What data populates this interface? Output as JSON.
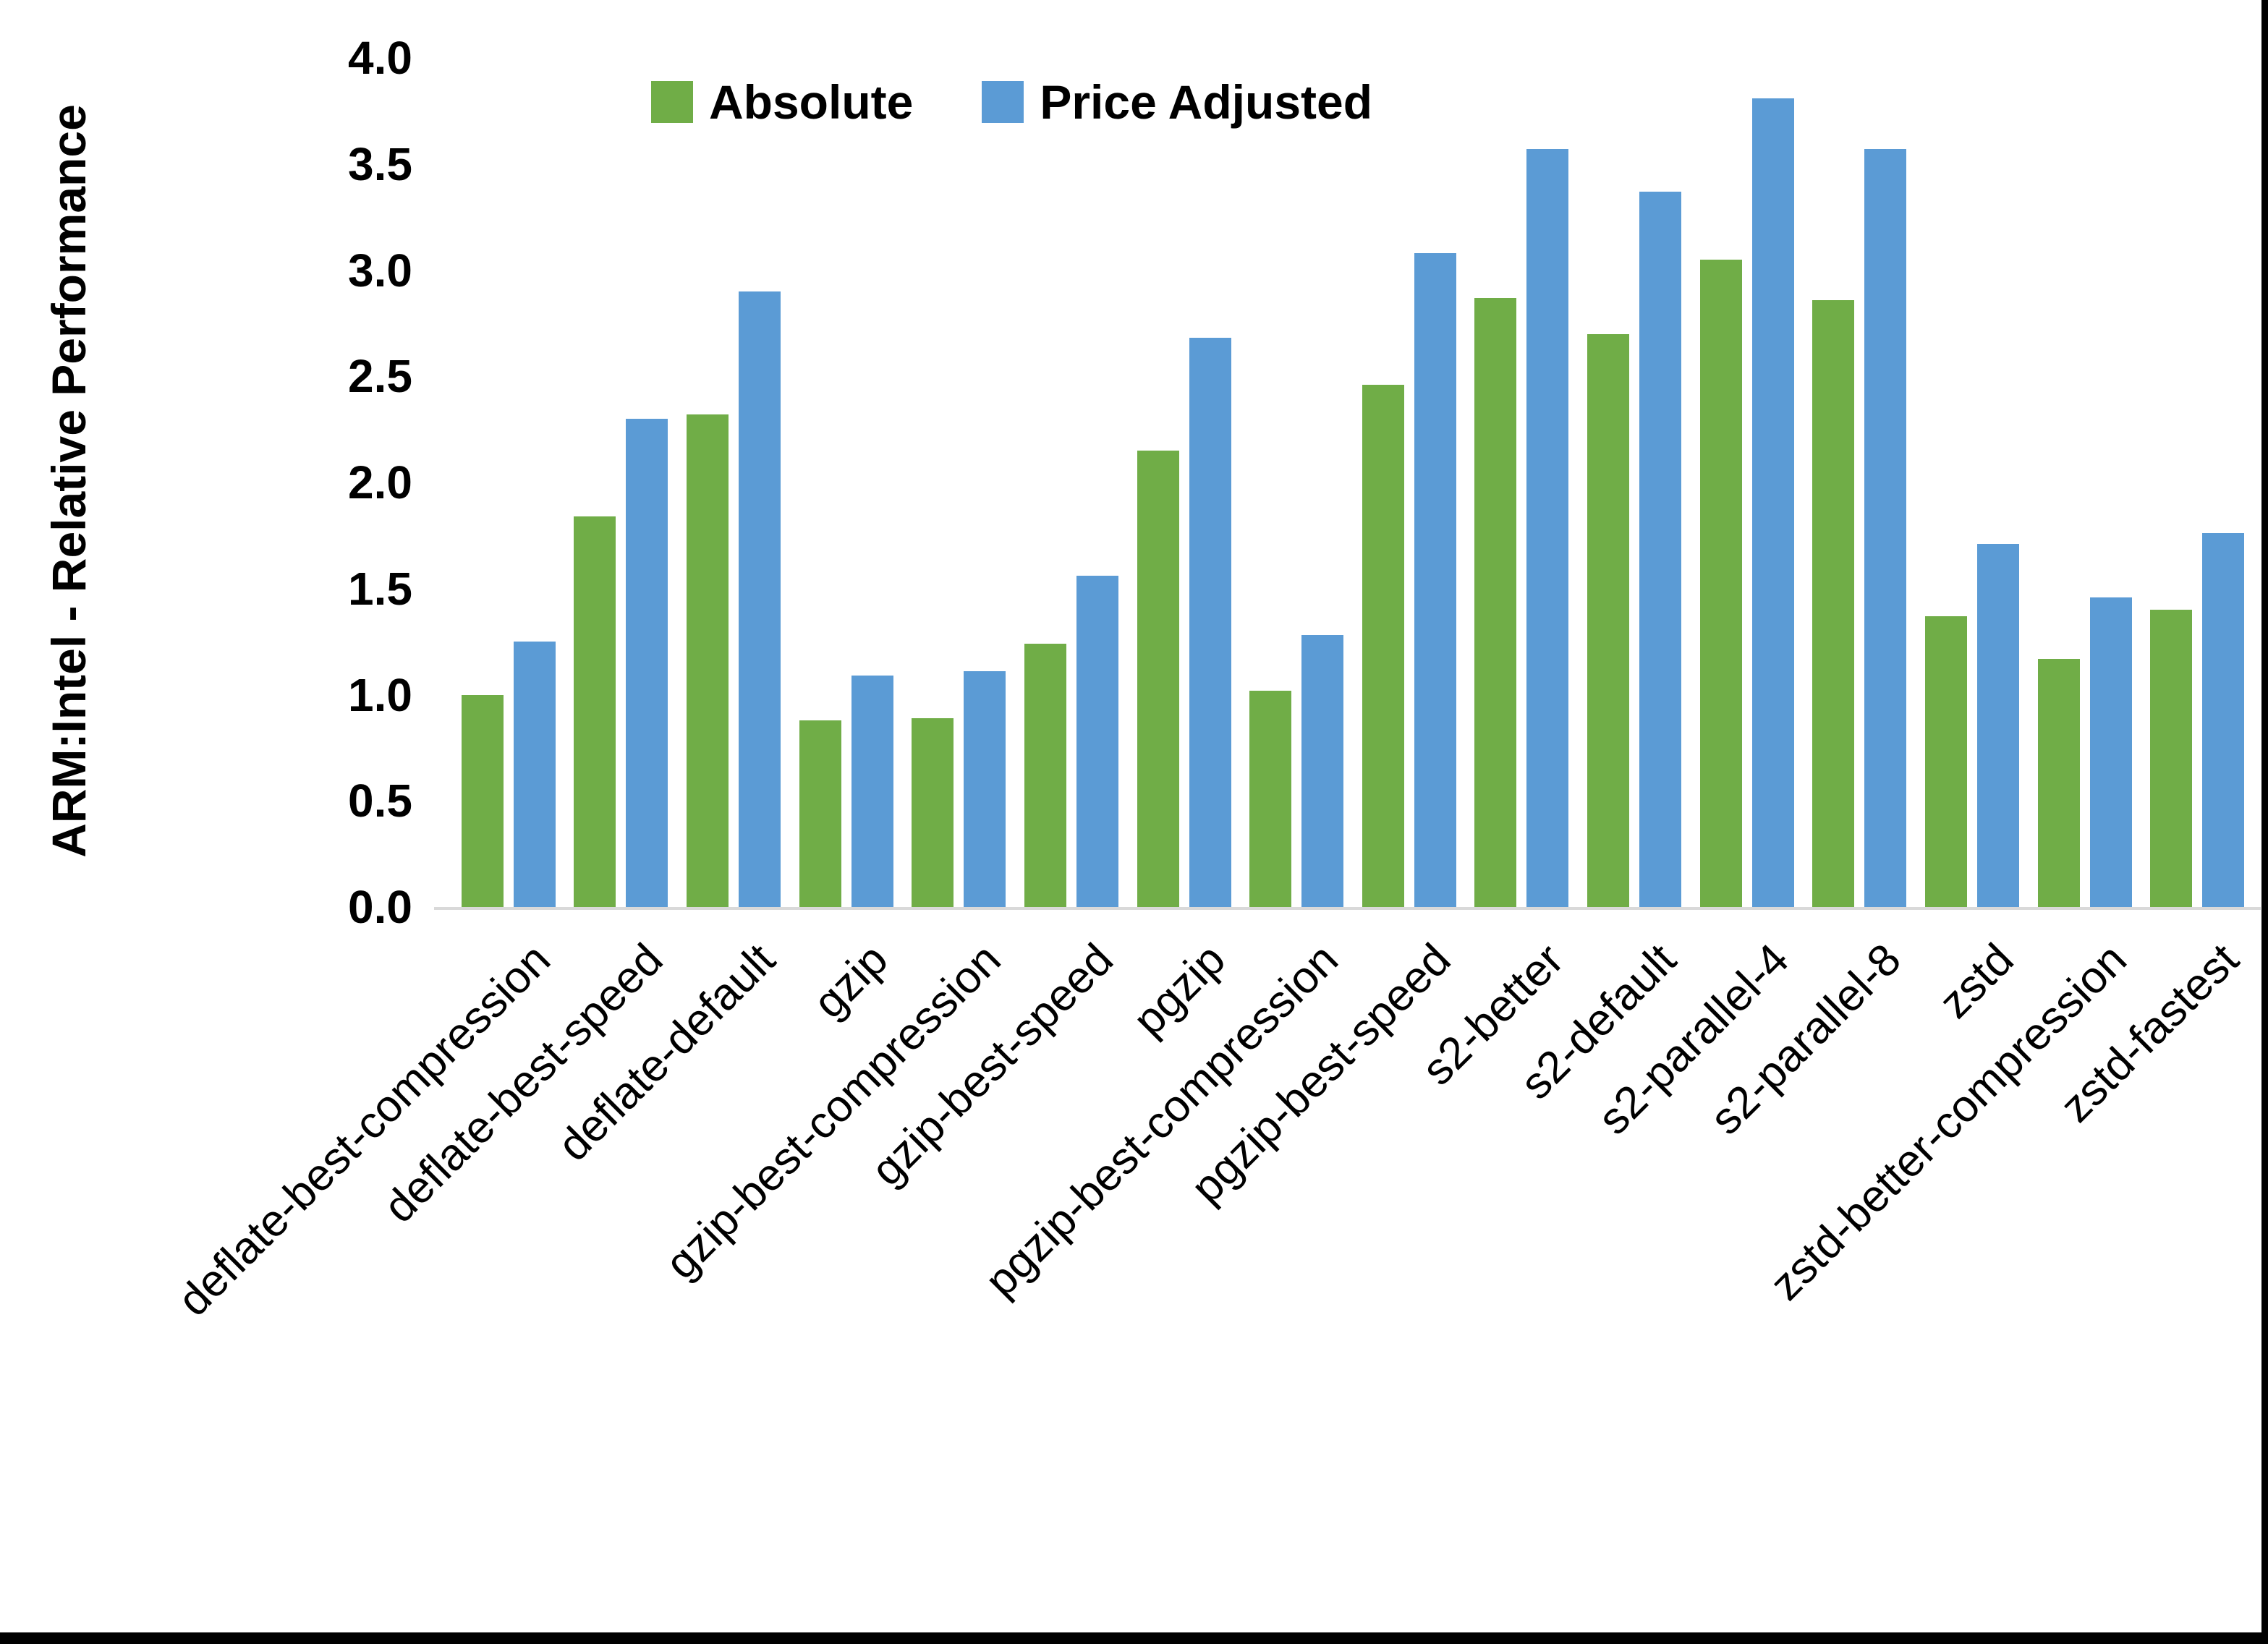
{
  "chart_data": {
    "type": "bar",
    "title": "",
    "xlabel": "",
    "ylabel": "ARM:Intel - Relative Performance",
    "ylim": [
      0,
      4
    ],
    "ytick_step": 0.5,
    "ytick_labels": [
      "0.0",
      "0.5",
      "1.0",
      "1.5",
      "2.0",
      "2.5",
      "3.0",
      "3.5",
      "4.0"
    ],
    "grid": false,
    "legend_position": "top-center",
    "categories": [
      "deflate-best-compression",
      "deflate-best-speed",
      "deflate-default",
      "gzip",
      "gzip-best-compression",
      "gzip-best-speed",
      "pgzip",
      "pgzip-best-compression",
      "pgzip-best-speed",
      "s2-better",
      "s2-default",
      "s2-parallel-4",
      "s2-parallel-8",
      "zstd",
      "zstd-better-compression",
      "zstd-fastest"
    ],
    "series": [
      {
        "name": "Absolute",
        "color": "#70AD47",
        "values": [
          1.0,
          1.84,
          2.32,
          0.88,
          0.89,
          1.24,
          2.15,
          1.02,
          2.46,
          2.87,
          2.7,
          3.05,
          2.86,
          1.37,
          1.17,
          1.4
        ]
      },
      {
        "name": "Price Adjusted",
        "color": "#5B9BD5",
        "values": [
          1.25,
          2.3,
          2.9,
          1.09,
          1.11,
          1.56,
          2.68,
          1.28,
          3.08,
          3.57,
          3.37,
          3.81,
          3.57,
          1.71,
          1.46,
          1.76
        ]
      }
    ]
  },
  "colors": {
    "background": "#FFFFFF",
    "axis_line": "#D9D9D9",
    "text": "#000000",
    "frame": "#000000"
  }
}
